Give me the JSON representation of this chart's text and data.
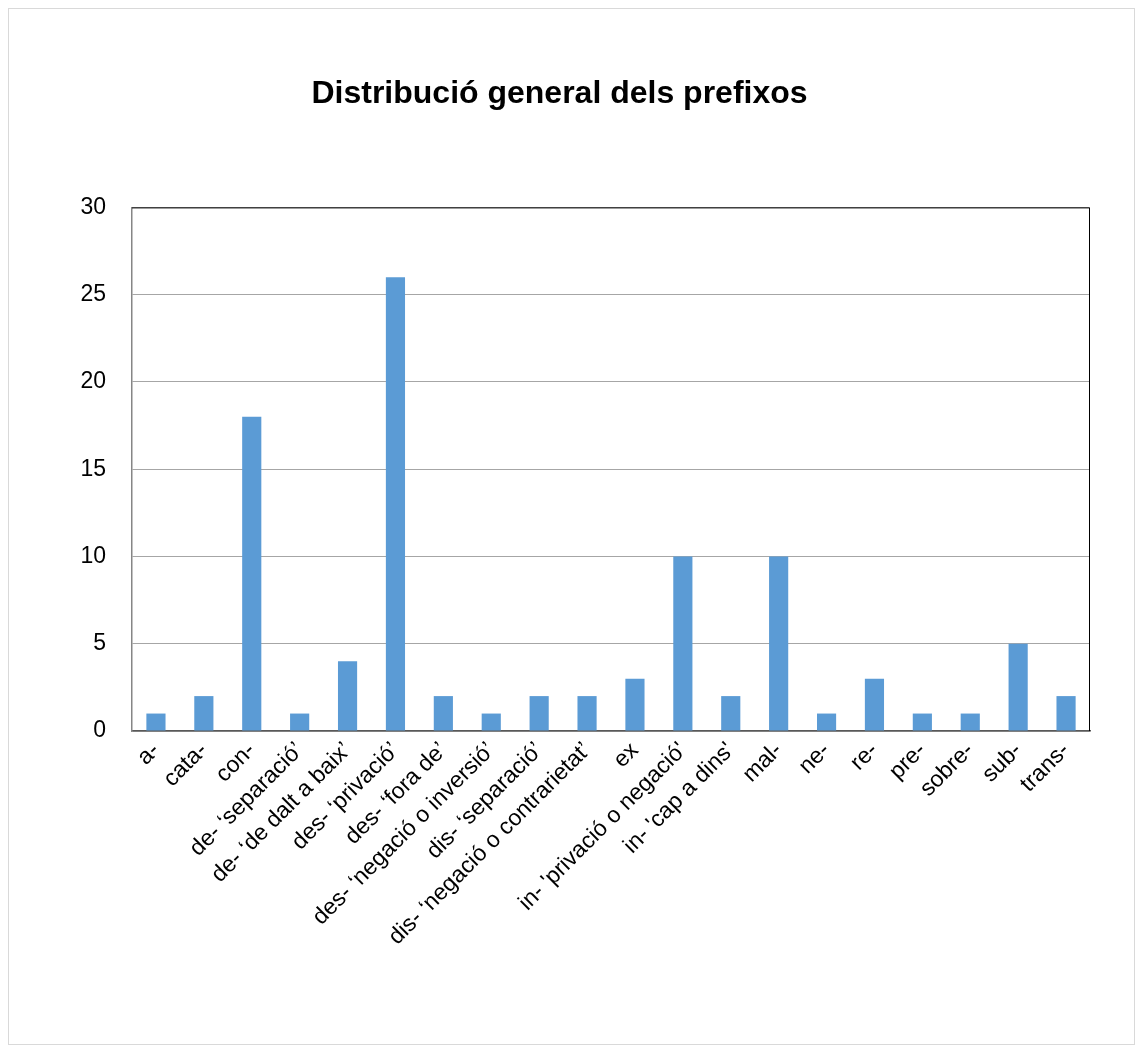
{
  "chart_data": {
    "type": "bar",
    "title": "Distribució general dels prefixos",
    "categories": [
      "a-",
      "cata-",
      "con-",
      "de- ‘separació’",
      "de- ‘de dalt a baix’",
      "des- ‘privació’",
      "des- ‘fora de’",
      "des- ‘negació o inversió’",
      "dis- ‘separació’",
      "dis- ‘negació o contrarietat’",
      "ex",
      "in- 'privació o negació'",
      "in- 'cap a dins'",
      "mal-",
      "ne-",
      "re-",
      "pre-",
      "sobre-",
      "sub-",
      "trans-"
    ],
    "values": [
      1,
      2,
      18,
      1,
      4,
      26,
      2,
      1,
      2,
      2,
      3,
      10,
      2,
      10,
      1,
      3,
      1,
      1,
      5,
      2
    ],
    "color": "#5b9bd5",
    "ylim": [
      0,
      30
    ],
    "yticks": [
      0,
      5,
      10,
      15,
      20,
      25,
      30
    ],
    "grid": "y",
    "legend": false
  }
}
